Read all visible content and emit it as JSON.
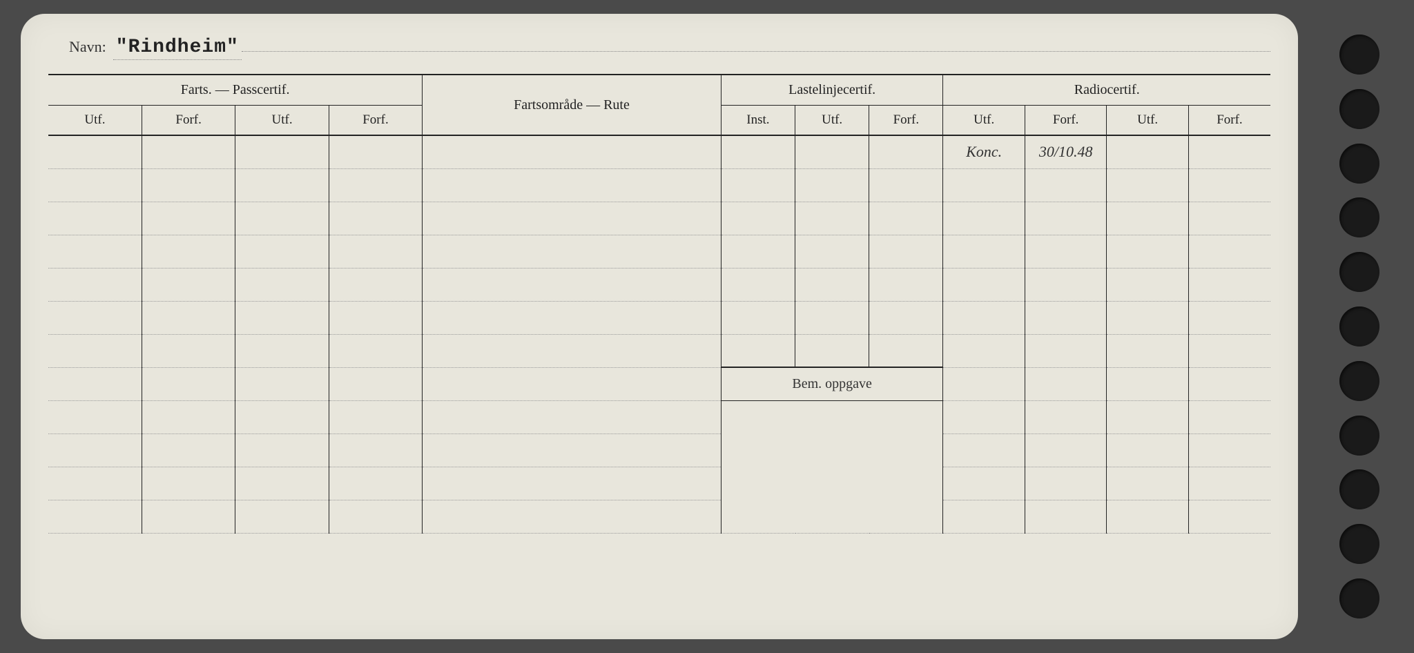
{
  "navn_label": "Navn:",
  "navn_value": "\"Rindheim\"",
  "groups": {
    "farts_pass": "Farts. — Passcertif.",
    "fartsomrade": "Fartsområde — Rute",
    "lastelinje": "Lastelinjecertif.",
    "radio": "Radiocertif."
  },
  "subheaders": {
    "utf": "Utf.",
    "forf": "Forf.",
    "inst": "Inst."
  },
  "bem_oppgave": "Bem. oppgave",
  "entries": {
    "radio_utf_1": "Konc.",
    "radio_forf_1": "30/10.48"
  },
  "colwidths": {
    "fp": 7.2,
    "route": 23,
    "ll": 5.7,
    "rc": 6.3
  },
  "num_rows_upper": 7,
  "num_rows_lower": 4,
  "num_holes": 11
}
